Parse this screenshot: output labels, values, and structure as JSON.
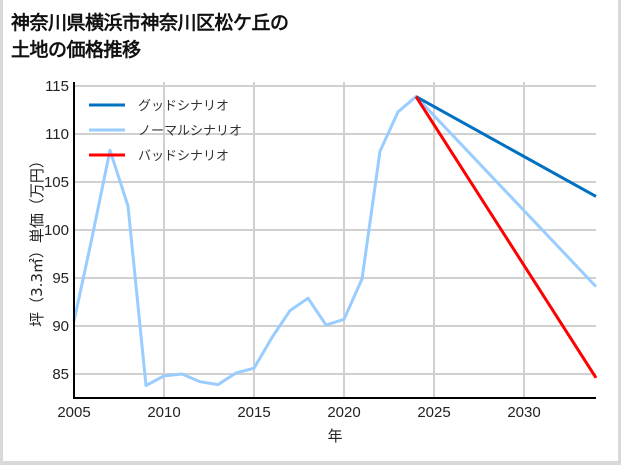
{
  "title_line1": "神奈川県横浜市神奈川区松ケ丘の",
  "title_line2": "土地の価格推移",
  "chart_data": {
    "type": "line",
    "title": "神奈川県横浜市神奈川区松ケ丘の土地の価格推移",
    "xlabel": "年",
    "ylabel": "坪（3.3㎡）単価（万円）",
    "xlim": [
      2005,
      2034
    ],
    "ylim": [
      82.5,
      115.5
    ],
    "xticks": [
      2005,
      2010,
      2015,
      2020,
      2025,
      2030
    ],
    "yticks": [
      85,
      90,
      95,
      100,
      105,
      110,
      115
    ],
    "grid": true,
    "legend_position": "upper left",
    "series": [
      {
        "name": "グッドシナリオ",
        "color": "#0070c0",
        "x": [
          2024,
          2034
        ],
        "values": [
          113.9,
          103.5
        ]
      },
      {
        "name": "ノーマルシナリオ",
        "color": "#99ccff",
        "x": [
          2005,
          2006,
          2007,
          2008,
          2009,
          2010,
          2011,
          2012,
          2013,
          2014,
          2015,
          2016,
          2017,
          2018,
          2019,
          2020,
          2021,
          2022,
          2023,
          2024,
          2034
        ],
        "values": [
          90.5,
          99.2,
          108.3,
          102.5,
          83.8,
          84.8,
          85.0,
          84.2,
          83.9,
          85.1,
          85.6,
          88.8,
          91.6,
          92.9,
          90.1,
          90.7,
          94.9,
          108.2,
          112.3,
          113.9,
          94.1
        ]
      },
      {
        "name": "バッドシナリオ",
        "color": "#ff0000",
        "x": [
          2024,
          2034
        ],
        "values": [
          113.9,
          84.6
        ]
      }
    ]
  }
}
